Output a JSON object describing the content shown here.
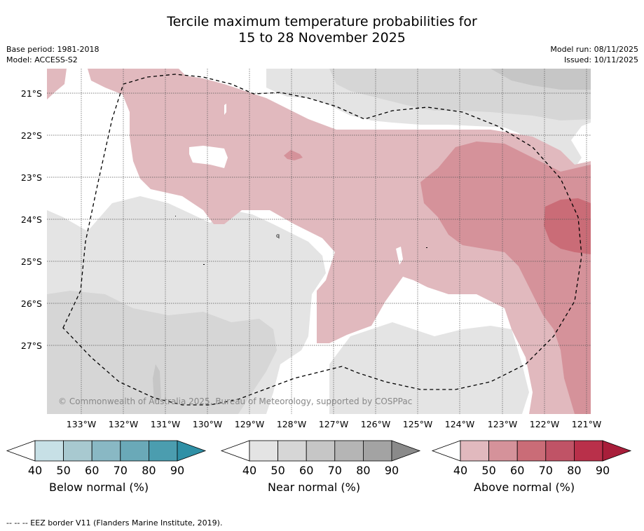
{
  "title": {
    "line1": "Tercile maximum temperature probabilities for",
    "line2": "15 to 28 November 2025"
  },
  "meta": {
    "base_period": "Base period: 1981-2018",
    "model": "Model: ACCESS-S2",
    "model_run": "Model run: 08/11/2025",
    "issued": "Issued: 10/11/2025"
  },
  "map": {
    "longitude_labels": [
      "133°W",
      "132°W",
      "131°W",
      "130°W",
      "129°W",
      "128°W",
      "127°W",
      "126°W",
      "125°W",
      "124°W",
      "123°W",
      "122°W",
      "121°W"
    ],
    "latitude_labels": [
      "21°S",
      "22°S",
      "23°S",
      "24°S",
      "25°S",
      "26°S",
      "27°S"
    ],
    "copyright": "© Commonwealth of Australia 2025, Bureau of Meteorology, supported by COSPPac",
    "colors": {
      "above_40": "#e1b9be",
      "above_50": "#d5929a",
      "above_60": "#ca6c77",
      "near_40": "#e4e4e4",
      "near_50": "#d6d6d6",
      "near_60": "#c6c6c6"
    }
  },
  "colorbars": [
    {
      "label": "Below normal (%)",
      "ticks": [
        "40",
        "50",
        "60",
        "70",
        "80",
        "90"
      ],
      "colors": [
        "#c7e0e6",
        "#a8c9d0",
        "#89b8c4",
        "#6aa9b8",
        "#4b9daf",
        "#2f90a6"
      ]
    },
    {
      "label": "Near normal (%)",
      "ticks": [
        "40",
        "50",
        "60",
        "70",
        "80",
        "90"
      ],
      "colors": [
        "#e4e4e4",
        "#d6d6d6",
        "#c6c6c6",
        "#b5b5b5",
        "#a3a3a3",
        "#8a8a8a"
      ]
    },
    {
      "label": "Above normal (%)",
      "ticks": [
        "40",
        "50",
        "60",
        "70",
        "80",
        "90"
      ],
      "colors": [
        "#e1b9be",
        "#d5929a",
        "#ca6c77",
        "#c05366",
        "#b9304a",
        "#a81e3a"
      ]
    }
  ],
  "footer": "--  --  -- EEZ border V11 (Flanders Marine Institute, 2019)."
}
